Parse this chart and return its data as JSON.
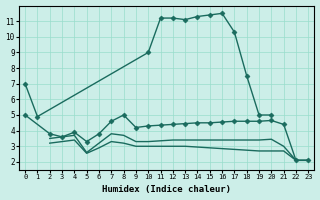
{
  "xlabel": "Humidex (Indice chaleur)",
  "background_color": "#cceee8",
  "grid_color": "#99ddcc",
  "line_color": "#1a6b5e",
  "xlim": [
    -0.5,
    23.5
  ],
  "ylim": [
    1.5,
    12.0
  ],
  "yticks": [
    2,
    3,
    4,
    5,
    6,
    7,
    8,
    9,
    10,
    11
  ],
  "xticks": [
    0,
    1,
    2,
    3,
    4,
    5,
    6,
    7,
    8,
    9,
    10,
    11,
    12,
    13,
    14,
    15,
    16,
    17,
    18,
    19,
    20,
    21,
    22,
    23
  ],
  "curves": [
    {
      "x": [
        0,
        1,
        10,
        11,
        12,
        13,
        14,
        15,
        16,
        17,
        18,
        19,
        20
      ],
      "y": [
        7.0,
        4.9,
        9.0,
        11.2,
        11.2,
        11.1,
        11.3,
        11.4,
        11.5,
        10.3,
        7.5,
        5.0,
        5.0
      ],
      "marker": true
    },
    {
      "x": [
        0,
        2,
        3,
        4,
        5,
        6,
        7,
        8,
        9,
        10,
        11,
        12,
        13,
        14,
        15,
        16,
        17,
        18,
        19,
        20,
        21,
        22,
        23
      ],
      "y": [
        5.0,
        3.8,
        3.6,
        3.9,
        3.3,
        3.8,
        4.6,
        5.0,
        4.2,
        4.3,
        4.35,
        4.4,
        4.45,
        4.5,
        4.5,
        4.55,
        4.6,
        4.6,
        4.6,
        4.65,
        4.4,
        2.1,
        2.1
      ],
      "marker": true
    },
    {
      "x": [
        2,
        3,
        4,
        5,
        6,
        7,
        8,
        9,
        10,
        11,
        12,
        13,
        14,
        15,
        16,
        17,
        18,
        19,
        20,
        21,
        22,
        23
      ],
      "y": [
        3.5,
        3.6,
        3.7,
        2.6,
        3.2,
        3.8,
        3.7,
        3.3,
        3.3,
        3.35,
        3.4,
        3.4,
        3.4,
        3.4,
        3.4,
        3.4,
        3.4,
        3.4,
        3.45,
        3.0,
        2.1,
        2.1
      ],
      "marker": false
    },
    {
      "x": [
        2,
        3,
        4,
        5,
        6,
        7,
        8,
        9,
        10,
        11,
        12,
        13,
        14,
        15,
        16,
        17,
        18,
        19,
        20,
        21,
        22,
        23
      ],
      "y": [
        3.2,
        3.3,
        3.4,
        2.55,
        2.9,
        3.3,
        3.2,
        3.0,
        3.0,
        3.0,
        3.0,
        3.0,
        2.95,
        2.9,
        2.85,
        2.8,
        2.75,
        2.7,
        2.7,
        2.7,
        2.1,
        2.1
      ],
      "marker": false
    }
  ]
}
